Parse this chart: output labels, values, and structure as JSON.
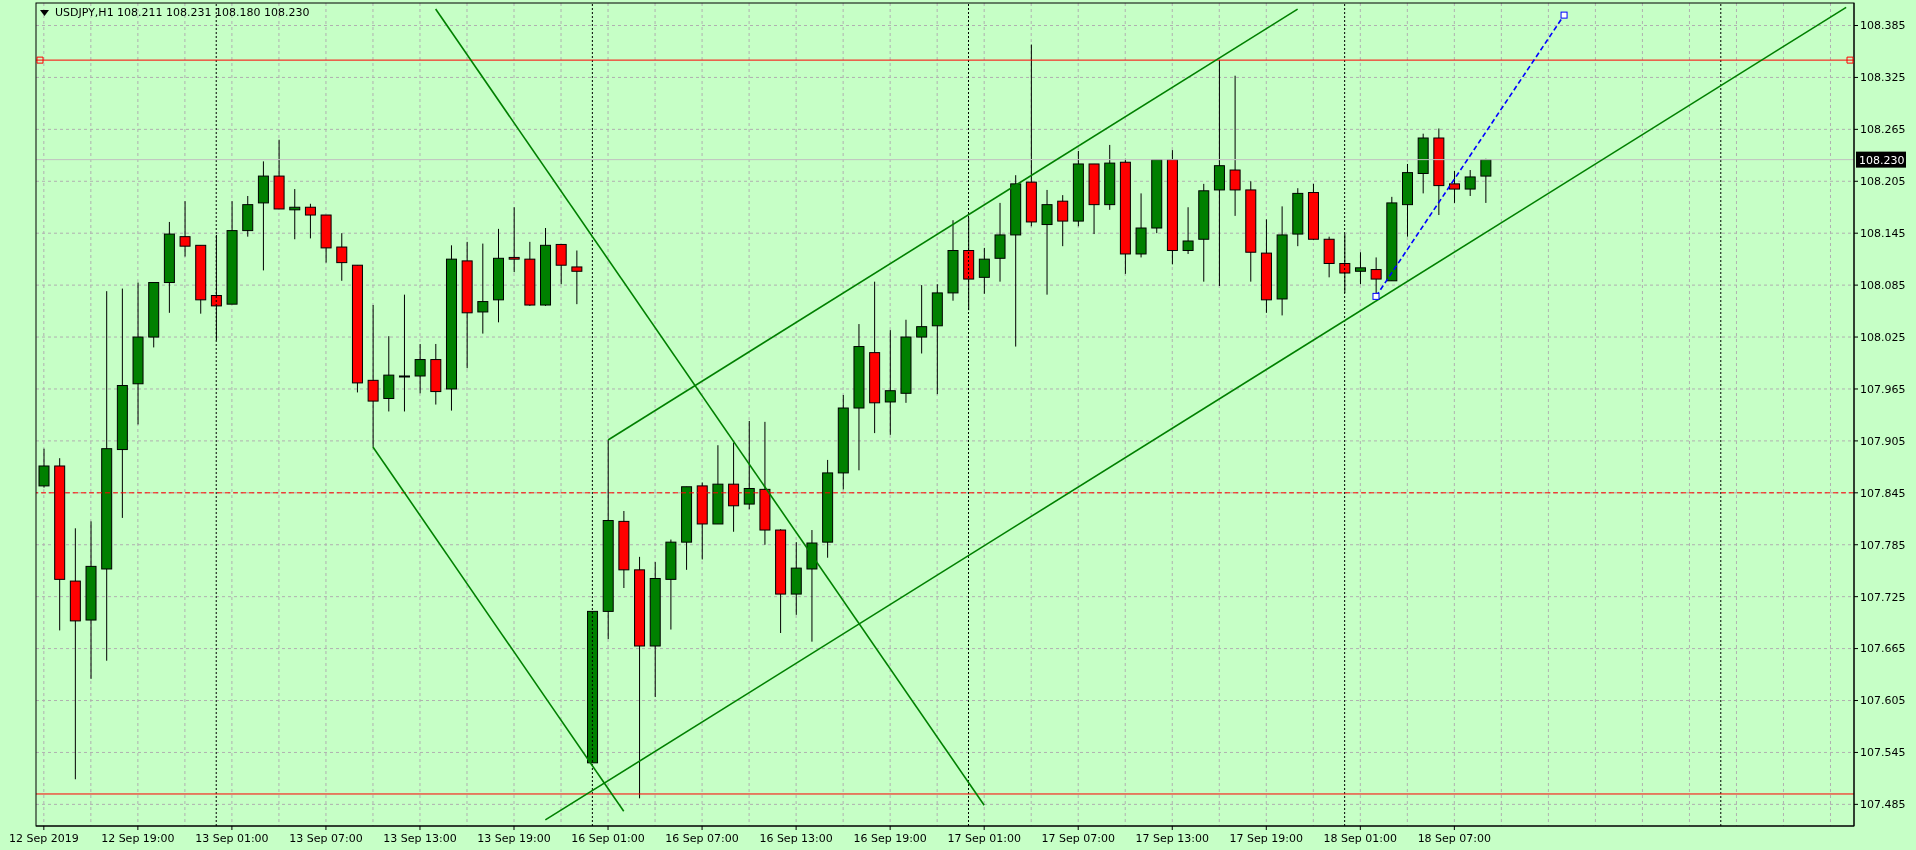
{
  "chart_data": {
    "type": "candlestick",
    "title": "USDJPY,H1 108.211 108.231 108.180 108.230",
    "categories": [
      "12 Sep 2019",
      null,
      null,
      null,
      null,
      null,
      "12 Sep 19:00",
      null,
      null,
      null,
      null,
      null,
      "13 Sep 01:00",
      null,
      null,
      null,
      null,
      null,
      "13 Sep 07:00",
      null,
      null,
      null,
      null,
      null,
      "13 Sep 13:00",
      null,
      null,
      null,
      null,
      null,
      "13 Sep 19:00",
      null,
      null,
      null,
      null,
      null,
      "16 Sep 01:00",
      null,
      null,
      null,
      null,
      null,
      "16 Sep 07:00",
      null,
      null,
      null,
      null,
      null,
      "16 Sep 13:00",
      null,
      null,
      null,
      null,
      null,
      "16 Sep 19:00",
      null,
      null,
      null,
      null,
      null,
      "17 Sep 01:00",
      null,
      null,
      null,
      null,
      null,
      "17 Sep 07:00",
      null,
      null,
      null,
      null,
      null,
      "17 Sep 13:00",
      null,
      null,
      null,
      null,
      null,
      "17 Sep 19:00",
      null,
      null,
      null,
      null,
      null,
      "18 Sep 01:00",
      null,
      null,
      null,
      null,
      null,
      "18 Sep 07:00",
      null,
      null,
      null,
      null,
      null,
      null,
      null,
      null,
      null,
      null,
      null,
      null,
      null,
      null,
      null,
      null,
      null,
      null,
      null,
      null,
      null,
      null,
      null,
      null,
      null
    ],
    "ohlc": [
      [
        107.853,
        107.896,
        107.851,
        107.876
      ],
      [
        107.876,
        107.885,
        107.686,
        107.745
      ],
      [
        107.743,
        107.804,
        107.514,
        107.697
      ],
      [
        107.698,
        107.812,
        107.63,
        107.76
      ],
      [
        107.757,
        108.078,
        107.651,
        107.896
      ],
      [
        107.895,
        108.081,
        107.816,
        107.969
      ],
      [
        107.971,
        108.088,
        107.924,
        108.025
      ],
      [
        108.025,
        108.088,
        108.013,
        108.088
      ],
      [
        108.088,
        108.158,
        108.053,
        108.144
      ],
      [
        108.141,
        108.182,
        108.118,
        108.13
      ],
      [
        108.131,
        108.131,
        108.052,
        108.068
      ],
      [
        108.073,
        108.143,
        108.021,
        108.061
      ],
      [
        108.063,
        108.182,
        108.063,
        108.148
      ],
      [
        108.148,
        108.188,
        108.141,
        108.178
      ],
      [
        108.18,
        108.228,
        108.102,
        108.211
      ],
      [
        108.211,
        108.253,
        108.173,
        108.173
      ],
      [
        108.172,
        108.196,
        108.138,
        108.175
      ],
      [
        108.175,
        108.179,
        108.139,
        108.166
      ],
      [
        108.166,
        108.166,
        108.111,
        108.128
      ],
      [
        108.129,
        108.145,
        108.09,
        108.111
      ],
      [
        108.108,
        108.108,
        107.961,
        107.972
      ],
      [
        107.975,
        108.062,
        107.898,
        107.951
      ],
      [
        107.954,
        108.026,
        107.939,
        107.981
      ],
      [
        107.98,
        108.074,
        107.939,
        107.98
      ],
      [
        107.98,
        108.017,
        107.96,
        107.999
      ],
      [
        107.999,
        108.017,
        107.947,
        107.962
      ],
      [
        107.965,
        108.131,
        107.94,
        108.115
      ],
      [
        108.113,
        108.135,
        107.989,
        108.053
      ],
      [
        108.054,
        108.133,
        108.029,
        108.066
      ],
      [
        108.068,
        108.15,
        108.042,
        108.116
      ],
      [
        108.117,
        108.175,
        108.1,
        108.115
      ],
      [
        108.115,
        108.135,
        108.061,
        108.062
      ],
      [
        108.062,
        108.151,
        108.061,
        108.131
      ],
      [
        108.132,
        108.132,
        108.086,
        108.108
      ],
      [
        108.106,
        108.125,
        108.063,
        108.101
      ],
      [
        107.533,
        107.708,
        107.533,
        107.708
      ],
      [
        107.708,
        107.906,
        107.676,
        107.813
      ],
      [
        107.812,
        107.824,
        107.735,
        107.756
      ],
      [
        107.756,
        107.771,
        107.492,
        107.668
      ],
      [
        107.668,
        107.765,
        107.609,
        107.746
      ],
      [
        107.745,
        107.791,
        107.687,
        107.788
      ],
      [
        107.788,
        107.852,
        107.756,
        107.852
      ],
      [
        107.853,
        107.857,
        107.768,
        107.809
      ],
      [
        107.809,
        107.9,
        107.809,
        107.855
      ],
      [
        107.855,
        107.903,
        107.8,
        107.83
      ],
      [
        107.832,
        107.928,
        107.826,
        107.85
      ],
      [
        107.849,
        107.927,
        107.785,
        107.802
      ],
      [
        107.802,
        107.803,
        107.683,
        107.728
      ],
      [
        107.728,
        107.788,
        107.704,
        107.758
      ],
      [
        107.757,
        107.802,
        107.673,
        107.787
      ],
      [
        107.788,
        107.883,
        107.77,
        107.868
      ],
      [
        107.868,
        107.958,
        107.849,
        107.943
      ],
      [
        107.943,
        108.04,
        107.871,
        108.014
      ],
      [
        108.007,
        108.089,
        107.914,
        107.949
      ],
      [
        107.95,
        108.033,
        107.912,
        107.963
      ],
      [
        107.96,
        108.045,
        107.949,
        108.025
      ],
      [
        108.025,
        108.085,
        108.006,
        108.037
      ],
      [
        108.038,
        108.086,
        107.959,
        108.076
      ],
      [
        108.076,
        108.16,
        108.067,
        108.125
      ],
      [
        108.125,
        108.163,
        108.056,
        108.092
      ],
      [
        108.094,
        108.128,
        108.075,
        108.115
      ],
      [
        108.116,
        108.18,
        108.089,
        108.143
      ],
      [
        108.143,
        108.212,
        108.014,
        108.202
      ],
      [
        108.204,
        108.363,
        108.153,
        108.158
      ],
      [
        108.155,
        108.195,
        108.074,
        108.178
      ],
      [
        108.182,
        108.189,
        108.13,
        108.159
      ],
      [
        108.159,
        108.24,
        108.153,
        108.225
      ],
      [
        108.225,
        108.225,
        108.144,
        108.178
      ],
      [
        108.178,
        108.247,
        108.172,
        108.226
      ],
      [
        108.227,
        108.231,
        108.098,
        108.121
      ],
      [
        108.121,
        108.191,
        108.117,
        108.151
      ],
      [
        108.151,
        108.23,
        108.145,
        108.23
      ],
      [
        108.23,
        108.241,
        108.109,
        108.125
      ],
      [
        108.125,
        108.175,
        108.121,
        108.136
      ],
      [
        108.138,
        108.202,
        108.089,
        108.194
      ],
      [
        108.195,
        108.345,
        108.084,
        108.223
      ],
      [
        108.218,
        108.327,
        108.165,
        108.195
      ],
      [
        108.195,
        108.205,
        108.089,
        108.123
      ],
      [
        108.122,
        108.161,
        108.053,
        108.068
      ],
      [
        108.069,
        108.176,
        108.05,
        108.143
      ],
      [
        108.144,
        108.197,
        108.13,
        108.191
      ],
      [
        108.192,
        108.202,
        108.137,
        108.138
      ],
      [
        108.138,
        108.141,
        108.094,
        108.11
      ],
      [
        108.11,
        108.144,
        108.076,
        108.099
      ],
      [
        108.101,
        108.123,
        108.086,
        108.105
      ],
      [
        108.103,
        108.117,
        108.073,
        108.092
      ],
      [
        108.09,
        108.187,
        108.09,
        108.18
      ],
      [
        108.178,
        108.225,
        108.141,
        108.215
      ],
      [
        108.214,
        108.26,
        108.191,
        108.255
      ],
      [
        108.255,
        108.266,
        108.166,
        108.2
      ],
      [
        108.202,
        108.217,
        108.18,
        108.196
      ],
      [
        108.196,
        108.218,
        108.188,
        108.21
      ],
      [
        108.211,
        108.231,
        108.18,
        108.23
      ],
      null,
      null,
      null,
      null,
      null,
      null,
      null,
      null,
      null,
      null,
      null,
      null,
      null,
      null,
      null,
      null,
      null,
      null,
      null,
      null,
      null,
      null,
      null
    ],
    "colors": [
      "#008000",
      "#ff0000",
      "#ff0000",
      "#008000",
      "#008000",
      "#008000",
      "#008000",
      "#008000",
      "#008000",
      "#ff0000",
      "#ff0000",
      "#ff0000",
      "#008000",
      "#008000",
      "#008000",
      "#ff0000",
      "#008000",
      "#ff0000",
      "#ff0000",
      "#ff0000",
      "#ff0000",
      "#ff0000",
      "#008000",
      "#008000",
      "#008000",
      "#ff0000",
      "#008000",
      "#ff0000",
      "#008000",
      "#008000",
      "#ff0000",
      "#ff0000",
      "#008000",
      "#ff0000",
      "#ff0000",
      "#008000",
      "#008000",
      "#ff0000",
      "#ff0000",
      "#008000",
      "#008000",
      "#008000",
      "#ff0000",
      "#008000",
      "#ff0000",
      "#008000",
      "#ff0000",
      "#ff0000",
      "#008000",
      "#008000",
      "#008000",
      "#008000",
      "#008000",
      "#ff0000",
      "#008000",
      "#008000",
      "#008000",
      "#008000",
      "#008000",
      "#ff0000",
      "#008000",
      "#008000",
      "#008000",
      "#ff0000",
      "#008000",
      "#ff0000",
      "#008000",
      "#ff0000",
      "#008000",
      "#ff0000",
      "#008000",
      "#008000",
      "#ff0000",
      "#008000",
      "#008000",
      "#008000",
      "#ff0000",
      "#ff0000",
      "#ff0000",
      "#008000",
      "#008000",
      "#ff0000",
      "#ff0000",
      "#ff0000",
      "#008000",
      "#ff0000",
      "#008000",
      "#008000",
      "#008000",
      "#ff0000",
      "#ff0000",
      "#008000",
      "#008000",
      null,
      null,
      null,
      null,
      null,
      null,
      null,
      null,
      null,
      null,
      null,
      null,
      null,
      null,
      null,
      null,
      null,
      null,
      null,
      null,
      null,
      null,
      null
    ],
    "series": [
      {
        "type": "line",
        "color": "#008000",
        "values": [
          null,
          null,
          null,
          null,
          null,
          null,
          null,
          null,
          null,
          null,
          null,
          null,
          null,
          null,
          null,
          null,
          null,
          null,
          null,
          null,
          null,
          null,
          null,
          null,
          null,
          null,
          null,
          null,
          null,
          null,
          null,
          null,
          null,
          null,
          null,
          null,
          107.906,
          null,
          null,
          null,
          null,
          null,
          null,
          null,
          null,
          null,
          null,
          null,
          null,
          null,
          null,
          null,
          null,
          null,
          null,
          null,
          null,
          null,
          null,
          null,
          null,
          null,
          null,
          null,
          null,
          null,
          null,
          null,
          null,
          null,
          null,
          null,
          null,
          null,
          null,
          null,
          null,
          null,
          null,
          null,
          108.404,
          null,
          null,
          null,
          null,
          null,
          null,
          null,
          null,
          null,
          null,
          null,
          null,
          null,
          null,
          null,
          null,
          null,
          null,
          null,
          null,
          null,
          null,
          null,
          null,
          null,
          null,
          null,
          null,
          null,
          null,
          null,
          null,
          null,
          null,
          null
        ]
      },
      {
        "type": "line",
        "color": "#008000",
        "values": [
          null,
          null,
          null,
          null,
          null,
          null,
          null,
          null,
          null,
          null,
          null,
          null,
          null,
          null,
          null,
          null,
          null,
          null,
          null,
          null,
          null,
          null,
          null,
          null,
          null,
          null,
          null,
          null,
          null,
          null,
          null,
          null,
          107.467,
          null,
          null,
          null,
          null,
          null,
          null,
          null,
          null,
          null,
          null,
          null,
          null,
          null,
          null,
          null,
          null,
          null,
          null,
          null,
          null,
          null,
          null,
          null,
          null,
          null,
          null,
          null,
          null,
          null,
          null,
          null,
          null,
          null,
          null,
          null,
          null,
          null,
          null,
          null,
          null,
          null,
          null,
          null,
          null,
          null,
          null,
          null,
          null,
          null,
          null,
          null,
          null,
          null,
          null,
          null,
          null,
          null,
          null,
          null,
          null,
          null,
          null,
          null,
          null,
          null,
          null,
          null,
          null,
          null,
          null,
          null,
          null,
          null,
          null,
          null,
          null,
          null,
          null,
          null,
          null,
          null,
          null,
          108.406
        ]
      },
      {
        "type": "line",
        "color": "#008000",
        "values": [
          null,
          null,
          null,
          null,
          null,
          null,
          null,
          null,
          null,
          null,
          null,
          null,
          null,
          null,
          null,
          null,
          null,
          null,
          null,
          null,
          null,
          null,
          null,
          null,
          null,
          108.404,
          null,
          null,
          null,
          null,
          null,
          null,
          null,
          null,
          null,
          null,
          null,
          null,
          null,
          null,
          null,
          null,
          null,
          null,
          null,
          null,
          null,
          null,
          null,
          null,
          null,
          null,
          null,
          null,
          null,
          null,
          null,
          null,
          null,
          null,
          107.484,
          null,
          null,
          null,
          null,
          null,
          null,
          null,
          null,
          null,
          null,
          null,
          null,
          null,
          null,
          null,
          null,
          null,
          null,
          null,
          null,
          null,
          null,
          null,
          null,
          null,
          null,
          null,
          null,
          null,
          null,
          null,
          null,
          null,
          null,
          null,
          null,
          null,
          null,
          null,
          null,
          null,
          null,
          null,
          null,
          null,
          null,
          null,
          null,
          null,
          null,
          null,
          null,
          null,
          null,
          null
        ]
      },
      {
        "type": "line",
        "color": "#008000",
        "values": [
          null,
          null,
          null,
          null,
          null,
          null,
          null,
          null,
          null,
          null,
          null,
          null,
          null,
          null,
          null,
          null,
          null,
          null,
          null,
          null,
          null,
          107.898,
          null,
          null,
          null,
          null,
          null,
          null,
          null,
          null,
          null,
          null,
          null,
          null,
          null,
          null,
          null,
          107.477,
          null,
          null,
          null,
          null,
          null,
          null,
          null,
          null,
          null,
          null,
          null,
          null,
          null,
          null,
          null,
          null,
          null,
          null,
          null,
          null,
          null,
          null,
          null,
          null,
          null,
          null,
          null,
          null,
          null,
          null,
          null,
          null,
          null,
          null,
          null,
          null,
          null,
          null,
          null,
          null,
          null,
          null,
          null,
          null,
          null,
          null,
          null,
          null,
          null,
          null,
          null,
          null,
          null,
          null,
          null,
          null,
          null,
          null,
          null,
          null,
          null,
          null,
          null,
          null,
          null,
          null,
          null,
          null,
          null,
          null,
          null,
          null,
          null,
          null,
          null,
          null,
          null,
          null
        ]
      },
      {
        "type": "line",
        "color": "#0000ff",
        "line_style": "dashed",
        "marker": "square",
        "values": [
          null,
          null,
          null,
          null,
          null,
          null,
          null,
          null,
          null,
          null,
          null,
          null,
          null,
          null,
          null,
          null,
          null,
          null,
          null,
          null,
          null,
          null,
          null,
          null,
          null,
          null,
          null,
          null,
          null,
          null,
          null,
          null,
          null,
          null,
          null,
          null,
          null,
          null,
          null,
          null,
          null,
          null,
          null,
          null,
          null,
          null,
          null,
          null,
          null,
          null,
          null,
          null,
          null,
          null,
          null,
          null,
          null,
          null,
          null,
          null,
          null,
          null,
          null,
          null,
          null,
          null,
          null,
          null,
          null,
          null,
          null,
          null,
          null,
          null,
          null,
          null,
          null,
          null,
          null,
          null,
          null,
          null,
          null,
          null,
          null,
          108.072,
          null,
          null,
          null,
          null,
          null,
          null,
          null,
          null,
          null,
          null,
          null,
          108.397,
          null,
          null,
          null,
          null,
          null,
          null,
          null,
          null,
          null,
          null,
          null,
          null,
          null,
          null,
          null,
          null,
          null,
          null
        ]
      }
    ],
    "ylim": [
      107.46,
      108.411
    ],
    "yticks": [
      107.485,
      107.545,
      107.605,
      107.665,
      107.725,
      107.785,
      107.845,
      107.905,
      107.965,
      108.025,
      108.085,
      108.145,
      108.205,
      108.265,
      108.325,
      108.385
    ],
    "ref_lines": [
      {
        "axis": "y",
        "value": 108.345,
        "color": "#ff0000"
      },
      {
        "axis": "y",
        "value": 107.497,
        "color": "#ff0000"
      },
      {
        "axis": "y",
        "value": 107.845,
        "color": "#ff0000",
        "line_style": "dashed"
      },
      {
        "axis": "y",
        "value": 108.23,
        "label": "108.230",
        "color": "#c0c0c0"
      }
    ],
    "grid": true
  }
}
